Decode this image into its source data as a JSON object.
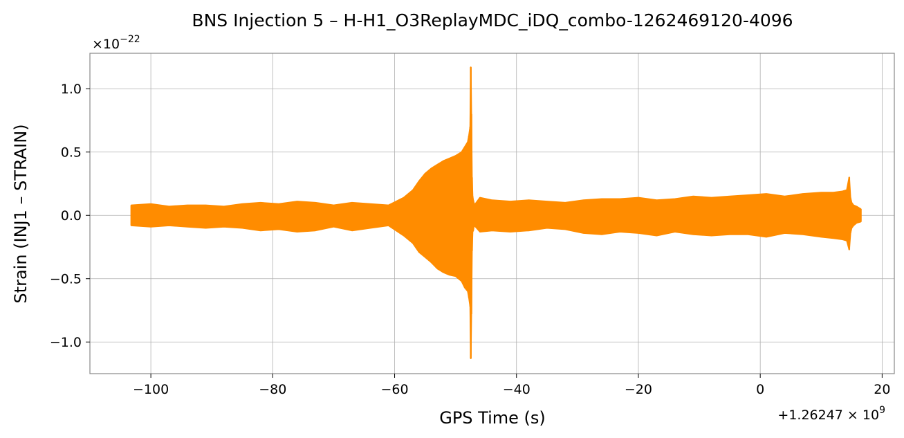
{
  "chart_data": {
    "type": "line",
    "title": "BNS Injection 5 – H-H1_O3ReplayMDC_iDQ_combo-1262469120-4096",
    "xlabel": "GPS Time (s)",
    "ylabel": "Strain (INJ1 – STRAIN)",
    "x_offset_label": "+1.26247 × 10",
    "x_offset_exponent": "9",
    "y_scale_label": "×10",
    "y_scale_exponent": "−22",
    "xlim": [
      -110,
      22
    ],
    "ylim": [
      -1.25,
      1.28
    ],
    "x_ticks": [
      {
        "value": -100,
        "label": "−100"
      },
      {
        "value": -80,
        "label": "−80"
      },
      {
        "value": -60,
        "label": "−60"
      },
      {
        "value": -40,
        "label": "−40"
      },
      {
        "value": -20,
        "label": "−20"
      },
      {
        "value": 0,
        "label": "0"
      },
      {
        "value": 20,
        "label": "20"
      }
    ],
    "y_ticks": [
      {
        "value": -1.0,
        "label": "−1.0"
      },
      {
        "value": -0.5,
        "label": "−0.5"
      },
      {
        "value": 0.0,
        "label": "0.0"
      },
      {
        "value": 0.5,
        "label": "0.5"
      },
      {
        "value": 1.0,
        "label": "1.0"
      }
    ],
    "grid": true,
    "legend": "none",
    "color": "#ff8c00",
    "series": [
      {
        "x": [
          -103.2,
          -100,
          -97,
          -94,
          -91,
          -88,
          -85,
          -82,
          -79,
          -76,
          -73,
          -70,
          -67,
          -64,
          -61,
          -58.5,
          -57,
          -56,
          -55,
          -54,
          -53,
          -52,
          -51,
          -50,
          -49,
          -48.5,
          -48,
          -47.8,
          -47.6,
          -47.5,
          -47.4,
          -47.3,
          -47.2,
          -47.1,
          -47.0,
          -46.9,
          -46,
          -44,
          -41,
          -38,
          -35,
          -32,
          -29,
          -26,
          -23,
          -20,
          -17,
          -14,
          -11,
          -8,
          -5,
          -2,
          1,
          4,
          7,
          10,
          12,
          13.5,
          14.2,
          14.6,
          14.8,
          15.0,
          15.3,
          15.8,
          16.5
        ],
        "y_upper": [
          0.08,
          0.09,
          0.07,
          0.08,
          0.08,
          0.07,
          0.09,
          0.1,
          0.09,
          0.11,
          0.1,
          0.08,
          0.1,
          0.09,
          0.08,
          0.14,
          0.2,
          0.27,
          0.33,
          0.37,
          0.4,
          0.43,
          0.45,
          0.47,
          0.5,
          0.54,
          0.58,
          0.63,
          0.7,
          1.17,
          0.8,
          0.3,
          0.15,
          0.12,
          0.1,
          0.08,
          0.14,
          0.12,
          0.11,
          0.12,
          0.11,
          0.1,
          0.12,
          0.13,
          0.13,
          0.14,
          0.12,
          0.13,
          0.15,
          0.14,
          0.15,
          0.16,
          0.17,
          0.15,
          0.17,
          0.18,
          0.18,
          0.19,
          0.2,
          0.3,
          0.14,
          0.1,
          0.08,
          0.07,
          0.05
        ],
        "y_lower": [
          -0.08,
          -0.09,
          -0.08,
          -0.09,
          -0.1,
          -0.09,
          -0.1,
          -0.12,
          -0.11,
          -0.13,
          -0.12,
          -0.09,
          -0.12,
          -0.1,
          -0.08,
          -0.16,
          -0.22,
          -0.29,
          -0.33,
          -0.37,
          -0.42,
          -0.45,
          -0.47,
          -0.48,
          -0.52,
          -0.57,
          -0.6,
          -0.65,
          -0.72,
          -1.13,
          -0.78,
          -0.28,
          -0.13,
          -0.12,
          -0.09,
          -0.08,
          -0.13,
          -0.12,
          -0.13,
          -0.12,
          -0.1,
          -0.11,
          -0.14,
          -0.15,
          -0.13,
          -0.14,
          -0.16,
          -0.13,
          -0.15,
          -0.16,
          -0.15,
          -0.15,
          -0.17,
          -0.14,
          -0.15,
          -0.17,
          -0.18,
          -0.19,
          -0.2,
          -0.27,
          -0.14,
          -0.1,
          -0.08,
          -0.06,
          -0.05
        ]
      }
    ]
  }
}
